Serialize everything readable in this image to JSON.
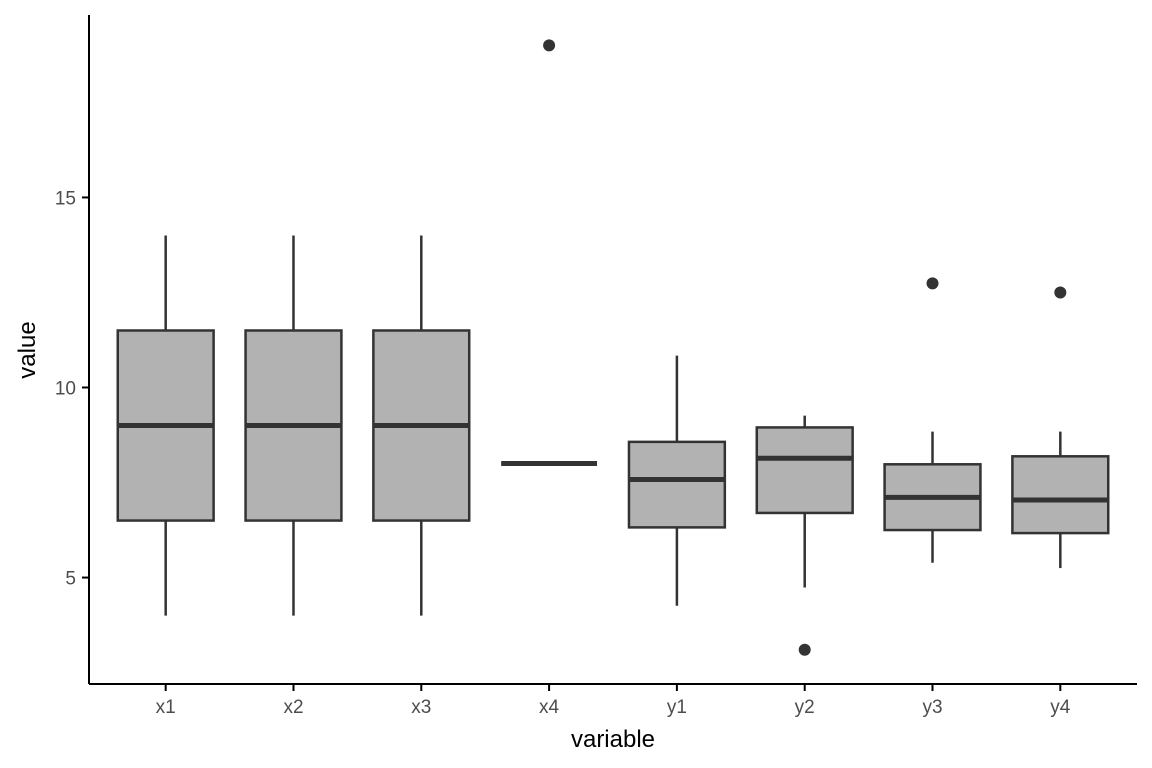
{
  "chart_data": {
    "type": "boxplot",
    "xlabel": "variable",
    "ylabel": "value",
    "categories": [
      "x1",
      "x2",
      "x3",
      "x4",
      "y1",
      "y2",
      "y3",
      "y4"
    ],
    "boxes": [
      {
        "category": "x1",
        "whisker_low": 4.0,
        "q1": 6.5,
        "median": 9.0,
        "q3": 11.5,
        "whisker_high": 14.0,
        "outliers": []
      },
      {
        "category": "x2",
        "whisker_low": 4.0,
        "q1": 6.5,
        "median": 9.0,
        "q3": 11.5,
        "whisker_high": 14.0,
        "outliers": []
      },
      {
        "category": "x3",
        "whisker_low": 4.0,
        "q1": 6.5,
        "median": 9.0,
        "q3": 11.5,
        "whisker_high": 14.0,
        "outliers": []
      },
      {
        "category": "x4",
        "whisker_low": 8.0,
        "q1": 8.0,
        "median": 8.0,
        "q3": 8.0,
        "whisker_high": 8.0,
        "outliers": [
          19.0
        ]
      },
      {
        "category": "y1",
        "whisker_low": 4.26,
        "q1": 6.32,
        "median": 7.58,
        "q3": 8.57,
        "whisker_high": 10.84,
        "outliers": []
      },
      {
        "category": "y2",
        "whisker_low": 4.74,
        "q1": 6.7,
        "median": 8.14,
        "q3": 8.95,
        "whisker_high": 9.26,
        "outliers": [
          3.1
        ]
      },
      {
        "category": "y3",
        "whisker_low": 5.39,
        "q1": 6.25,
        "median": 7.11,
        "q3": 7.98,
        "whisker_high": 8.84,
        "outliers": [
          12.74
        ]
      },
      {
        "category": "y4",
        "whisker_low": 5.25,
        "q1": 6.17,
        "median": 7.04,
        "q3": 8.19,
        "whisker_high": 8.84,
        "outliers": [
          12.5
        ]
      }
    ],
    "yticks": [
      5,
      10,
      15
    ],
    "ylim": [
      2.2,
      19.8
    ],
    "grid": false,
    "colors": {
      "box_fill": "#b2b2b2",
      "box_stroke": "#333333",
      "median": "#333333",
      "outlier": "#333333",
      "axis": "#000000",
      "tick_label": "#4d4d4d"
    }
  }
}
